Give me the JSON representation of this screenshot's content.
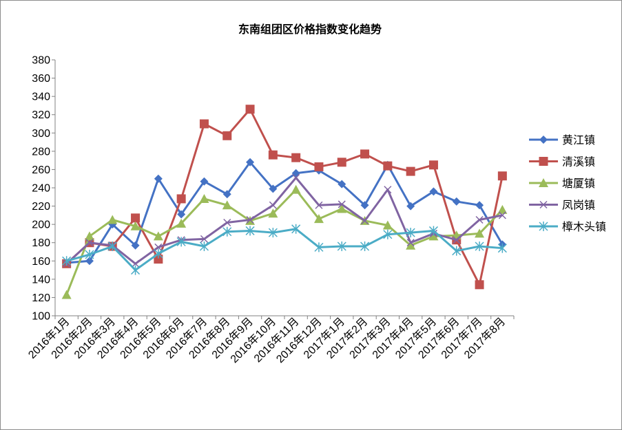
{
  "chart_data": {
    "type": "line",
    "title": "东南组团区价格指数变化趋势",
    "xlabel": "",
    "ylabel": "",
    "ylim": [
      100,
      380
    ],
    "ytick_step": 20,
    "grid": false,
    "legend_position": "right",
    "categories": [
      "2016年1月",
      "2016年2月",
      "2016年3月",
      "2016年4月",
      "2016年5月",
      "2016年6月",
      "2016年7月",
      "2016年8月",
      "2016年9月",
      "2016年10月",
      "2016年11月",
      "2016年12月",
      "2017年1月",
      "2017年2月",
      "2017年3月",
      "2017年4月",
      "2017年5月",
      "2017年6月",
      "2017年7月",
      "2017年8月"
    ],
    "series": [
      {
        "name": "黄江镇",
        "color": "#4472c4",
        "marker": "diamond",
        "values": [
          158,
          160,
          200,
          177,
          250,
          211,
          247,
          233,
          268,
          239,
          256,
          259,
          244,
          221,
          265,
          220,
          236,
          225,
          221,
          178
        ]
      },
      {
        "name": "清溪镇",
        "color": "#c0504d",
        "marker": "square",
        "values": [
          157,
          180,
          176,
          207,
          162,
          228,
          310,
          297,
          326,
          276,
          273,
          263,
          268,
          277,
          264,
          258,
          265,
          183,
          134,
          253
        ]
      },
      {
        "name": "塘厦镇",
        "color": "#9bbb59",
        "marker": "triangle",
        "values": [
          123,
          187,
          205,
          198,
          187,
          201,
          228,
          221,
          204,
          212,
          238,
          206,
          217,
          204,
          199,
          177,
          187,
          188,
          190,
          216
        ]
      },
      {
        "name": "凤岗镇",
        "color": "#8064a2",
        "marker": "x",
        "values": [
          157,
          180,
          177,
          157,
          175,
          183,
          184,
          202,
          205,
          221,
          251,
          221,
          222,
          204,
          238,
          180,
          190,
          183,
          205,
          210
        ]
      },
      {
        "name": "樟木头镇",
        "color": "#4bacc6",
        "marker": "asterisk",
        "values": [
          160,
          167,
          176,
          150,
          168,
          181,
          176,
          192,
          193,
          191,
          195,
          175,
          176,
          176,
          189,
          191,
          193,
          171,
          176,
          174
        ]
      }
    ]
  }
}
